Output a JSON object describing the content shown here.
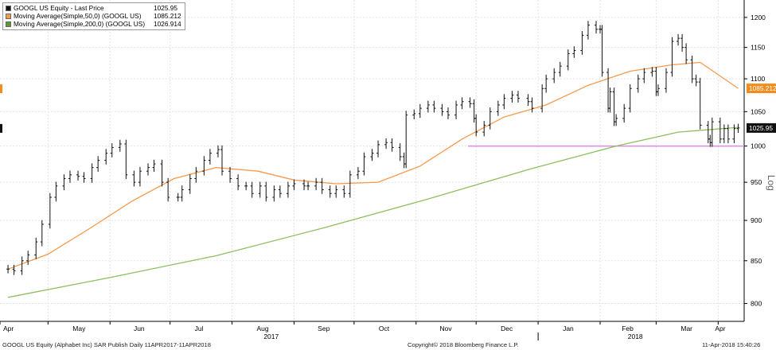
{
  "chart_data": {
    "type": "line",
    "xlabel": "",
    "ylabel": "",
    "scale": "log",
    "y_axis_side": "right",
    "y_axis_note": "Log",
    "ylim": [
      780,
      1230
    ],
    "y_ticks": [
      "800",
      "850",
      "900",
      "950",
      "1000",
      "1050",
      "1100",
      "1150",
      "1200"
    ],
    "x_months": [
      "Apr",
      "May",
      "Jun",
      "Jul",
      "Aug",
      "Sep",
      "Oct",
      "Nov",
      "Dec",
      "Jan",
      "Feb",
      "Mar",
      "Apr"
    ],
    "x_years": [
      "2017",
      "2018"
    ],
    "grid": true,
    "legend_position": "top-left",
    "series": [
      {
        "name": "GOOGL US Equity - Last Price",
        "last_value": "1025.95",
        "color": "#111111",
        "style": "ohlc bars",
        "values": [
          [
            "2017-04-11",
            840
          ],
          [
            "2017-04-14",
            838
          ],
          [
            "2017-04-18",
            850
          ],
          [
            "2017-04-21",
            857
          ],
          [
            "2017-04-25",
            873
          ],
          [
            "2017-04-28",
            895
          ],
          [
            "2017-05-02",
            930
          ],
          [
            "2017-05-05",
            945
          ],
          [
            "2017-05-09",
            955
          ],
          [
            "2017-05-12",
            960
          ],
          [
            "2017-05-16",
            958
          ],
          [
            "2017-05-19",
            955
          ],
          [
            "2017-05-23",
            970
          ],
          [
            "2017-05-26",
            980
          ],
          [
            "2017-05-30",
            990
          ],
          [
            "2017-06-02",
            998
          ],
          [
            "2017-06-06",
            1003
          ],
          [
            "2017-06-09",
            960
          ],
          [
            "2017-06-13",
            950
          ],
          [
            "2017-06-16",
            965
          ],
          [
            "2017-06-20",
            970
          ],
          [
            "2017-06-23",
            975
          ],
          [
            "2017-06-27",
            950
          ],
          [
            "2017-06-30",
            930
          ],
          [
            "2017-07-05",
            930
          ],
          [
            "2017-07-07",
            940
          ],
          [
            "2017-07-11",
            955
          ],
          [
            "2017-07-14",
            965
          ],
          [
            "2017-07-18",
            980
          ],
          [
            "2017-07-21",
            990
          ],
          [
            "2017-07-25",
            995
          ],
          [
            "2017-07-27",
            965
          ],
          [
            "2017-07-31",
            955
          ],
          [
            "2017-08-04",
            945
          ],
          [
            "2017-08-08",
            945
          ],
          [
            "2017-08-11",
            935
          ],
          [
            "2017-08-15",
            945
          ],
          [
            "2017-08-18",
            930
          ],
          [
            "2017-08-22",
            940
          ],
          [
            "2017-08-25",
            935
          ],
          [
            "2017-08-29",
            945
          ],
          [
            "2017-09-01",
            948
          ],
          [
            "2017-09-06",
            945
          ],
          [
            "2017-09-08",
            945
          ],
          [
            "2017-09-12",
            950
          ],
          [
            "2017-09-15",
            940
          ],
          [
            "2017-09-19",
            935
          ],
          [
            "2017-09-22",
            940
          ],
          [
            "2017-09-26",
            935
          ],
          [
            "2017-09-29",
            960
          ],
          [
            "2017-10-03",
            965
          ],
          [
            "2017-10-06",
            985
          ],
          [
            "2017-10-10",
            990
          ],
          [
            "2017-10-13",
            1002
          ],
          [
            "2017-10-17",
            1005
          ],
          [
            "2017-10-20",
            998
          ],
          [
            "2017-10-24",
            985
          ],
          [
            "2017-10-26",
            975
          ],
          [
            "2017-10-27",
            1045
          ],
          [
            "2017-10-31",
            1047
          ],
          [
            "2017-11-03",
            1055
          ],
          [
            "2017-11-07",
            1060
          ],
          [
            "2017-11-10",
            1055
          ],
          [
            "2017-11-14",
            1050
          ],
          [
            "2017-11-17",
            1045
          ],
          [
            "2017-11-21",
            1060
          ],
          [
            "2017-11-24",
            1065
          ],
          [
            "2017-11-28",
            1062
          ],
          [
            "2017-11-30",
            1040
          ],
          [
            "2017-12-01",
            1020
          ],
          [
            "2017-12-05",
            1030
          ],
          [
            "2017-12-08",
            1050
          ],
          [
            "2017-12-12",
            1060
          ],
          [
            "2017-12-15",
            1070
          ],
          [
            "2017-12-19",
            1075
          ],
          [
            "2017-12-22",
            1070
          ],
          [
            "2017-12-27",
            1065
          ],
          [
            "2017-12-29",
            1055
          ],
          [
            "2018-01-03",
            1085
          ],
          [
            "2018-01-05",
            1100
          ],
          [
            "2018-01-09",
            1110
          ],
          [
            "2018-01-12",
            1120
          ],
          [
            "2018-01-16",
            1140
          ],
          [
            "2018-01-19",
            1145
          ],
          [
            "2018-01-23",
            1170
          ],
          [
            "2018-01-26",
            1187
          ],
          [
            "2018-01-30",
            1180
          ],
          [
            "2018-02-01",
            1180
          ],
          [
            "2018-02-02",
            1110
          ],
          [
            "2018-02-05",
            1055
          ],
          [
            "2018-02-06",
            1080
          ],
          [
            "2018-02-08",
            1035
          ],
          [
            "2018-02-09",
            1040
          ],
          [
            "2018-02-13",
            1055
          ],
          [
            "2018-02-16",
            1085
          ],
          [
            "2018-02-20",
            1100
          ],
          [
            "2018-02-23",
            1110
          ],
          [
            "2018-02-27",
            1112
          ],
          [
            "2018-03-01",
            1080
          ],
          [
            "2018-03-02",
            1085
          ],
          [
            "2018-03-06",
            1110
          ],
          [
            "2018-03-09",
            1160
          ],
          [
            "2018-03-12",
            1165
          ],
          [
            "2018-03-14",
            1150
          ],
          [
            "2018-03-16",
            1130
          ],
          [
            "2018-03-19",
            1100
          ],
          [
            "2018-03-21",
            1095
          ],
          [
            "2018-03-23",
            1030
          ],
          [
            "2018-03-27",
            1010
          ],
          [
            "2018-03-28",
            1005
          ],
          [
            "2018-03-29",
            1035
          ],
          [
            "2018-04-02",
            1010
          ],
          [
            "2018-04-04",
            1025
          ],
          [
            "2018-04-06",
            1010
          ],
          [
            "2018-04-09",
            1025
          ],
          [
            "2018-04-11",
            1025.95
          ]
        ]
      },
      {
        "name": "Moving Average(Simple,50,0) (GOOGL US)",
        "last_value": "1085.212",
        "color": "#f59a4c",
        "values": [
          [
            "2017-04-11",
            840
          ],
          [
            "2017-05-01",
            858
          ],
          [
            "2017-05-22",
            890
          ],
          [
            "2017-06-12",
            925
          ],
          [
            "2017-07-03",
            955
          ],
          [
            "2017-07-24",
            970
          ],
          [
            "2017-08-14",
            965
          ],
          [
            "2017-09-01",
            953
          ],
          [
            "2017-09-22",
            948
          ],
          [
            "2017-10-13",
            950
          ],
          [
            "2017-11-03",
            972
          ],
          [
            "2017-11-24",
            1010
          ],
          [
            "2017-12-15",
            1042
          ],
          [
            "2018-01-05",
            1060
          ],
          [
            "2018-01-26",
            1090
          ],
          [
            "2018-02-16",
            1112
          ],
          [
            "2018-03-09",
            1122
          ],
          [
            "2018-03-23",
            1126
          ],
          [
            "2018-04-11",
            1085.212
          ]
        ]
      },
      {
        "name": "Moving Average(Simple,200,0) (GOOGL US)",
        "last_value": "1026.914",
        "color": "#8dbf5e",
        "values": [
          [
            "2017-04-11",
            807
          ],
          [
            "2017-06-01",
            830
          ],
          [
            "2017-07-24",
            856
          ],
          [
            "2017-09-15",
            890
          ],
          [
            "2017-11-06",
            927
          ],
          [
            "2017-12-28",
            968
          ],
          [
            "2018-02-09",
            1000
          ],
          [
            "2018-03-12",
            1020
          ],
          [
            "2018-04-11",
            1026.914
          ]
        ]
      }
    ],
    "annotations": [
      {
        "type": "horizontal-line",
        "value": 1000,
        "from": "2017-11-27",
        "to": "2018-04-11",
        "color": "#d98be0"
      }
    ],
    "axis_badges": [
      {
        "text": "1085.212",
        "value": 1085.212,
        "color": "#f28c1c",
        "text_color": "#ffffff"
      },
      {
        "text": "1025.95",
        "value": 1025.95,
        "color": "#111111",
        "text_color": "#ffffff"
      }
    ]
  },
  "footer": {
    "source": "GOOGL US Equity (Alphabet Inc) SAR Publish  Daily 11APR2017-11APR2018",
    "copyright": "Copyright© 2018 Bloomberg Finance L.P.",
    "timestamp": "11-Apr-2018 15:40:26"
  }
}
